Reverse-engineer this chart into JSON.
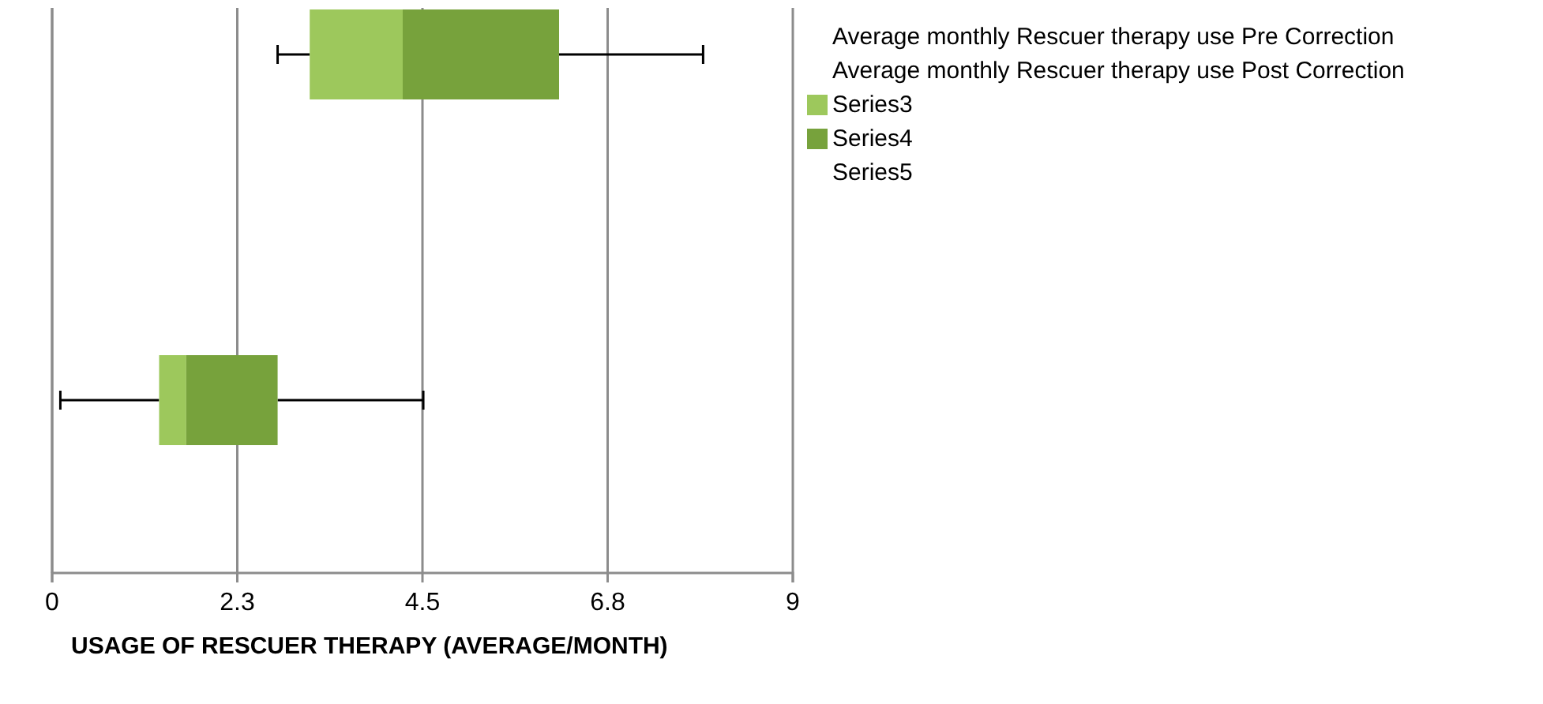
{
  "chart_data": {
    "type": "box",
    "orientation": "horizontal",
    "xlabel": "USAGE OF RESCUER THERAPY (AVERAGE/MONTH)",
    "categories": [
      null,
      null
    ],
    "series": [
      {
        "name": "Average monthly Rescuer therapy use Pre Correction",
        "boxes": [
          {
            "low": 2.74,
            "q1": 3.13,
            "median": 4.26,
            "q3": 6.16,
            "high": 7.91
          },
          null
        ]
      },
      {
        "name": "Average monthly Rescuer therapy use Post Correction",
        "boxes": [
          null,
          {
            "low": 0.1,
            "q1": 1.3,
            "median": 1.63,
            "q3": 2.74,
            "high": 4.51
          }
        ]
      }
    ],
    "colors": [
      "#9dc85c",
      "#77a23c"
    ],
    "annotations": [
      "Series3",
      "Series4",
      "Series5"
    ],
    "xlim": [
      0,
      9
    ],
    "xticks": [
      0,
      {
        "value": 2.25,
        "label": "2.3"
      },
      4.5,
      {
        "value": 6.75,
        "label": "6.8"
      },
      9
    ],
    "grid": "x",
    "legend": "right"
  }
}
